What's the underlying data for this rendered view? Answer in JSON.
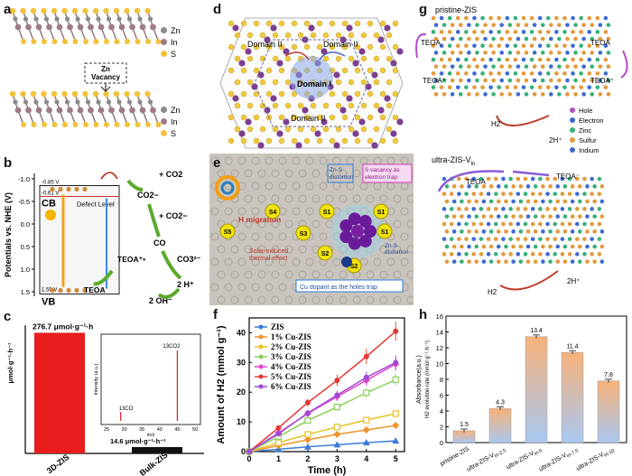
{
  "figure": {
    "panels": {
      "a": {
        "label": "a",
        "legend": [
          "Zn",
          "In",
          "S"
        ],
        "legend_colors": [
          "#8a8a8a",
          "#9e7b86",
          "#f2c23a"
        ],
        "vacancy_label": "Zn\nVacancy"
      },
      "b": {
        "label": "b",
        "ylabel": "Potentials vs. NHE (V)",
        "ticks": [
          "-1.0",
          "-0.5",
          "0.0",
          "0.5",
          "1.0",
          "1.5"
        ],
        "cb_label": "CB",
        "vb_label": "VB",
        "cb_value": "-0.85 V",
        "defect_value": "-0.61 V",
        "vb_value": "1.55 V",
        "defect_text": "Defect Level",
        "co2_top": "+ CO2",
        "co2_minus": "CO2−",
        "co2_minus2": "+ CO2−",
        "co": "CO",
        "co3": "CO3²⁻",
        "two_h": "2 H⁺",
        "two_oh": "2 OH⁻",
        "teoa_plus": "TEOA⁺•",
        "teoa": "TEOA"
      },
      "c": {
        "label": "c",
        "ylabel": "μmol·g⁻¹·h⁻¹",
        "bar1_value": "276.7 μmol·g⁻¹·h",
        "bar2_value": "14.6 μmol·g⁻¹·h⁻¹",
        "categories": [
          "3D-ZIS",
          "Bulk-ZIS"
        ],
        "inset_ylabel": "Intensity (a.u.)",
        "inset_xlabel": "m/z",
        "inset_peak1": "13CO",
        "inset_peak2": "13CO2",
        "inset_ticks": [
          "25",
          "30",
          "35",
          "40",
          "45",
          "50"
        ]
      },
      "d": {
        "label": "d",
        "domains": [
          "Domain II",
          "Domain II",
          "Domain I",
          "Domain II"
        ]
      },
      "e": {
        "label": "e",
        "h_migration": "H migration",
        "solar_effect": "Solar-induced\nthermal effect",
        "zns_distortion": "Zn-S\ndistortion",
        "s_vacancy": "S vacancy as\nelectron trap",
        "zn_distortion": "Zn-S\ndistortion",
        "cu_dopant": "Cu dopant as the holes trap",
        "sites": [
          "S5",
          "S4",
          "S3",
          "S1",
          "S2",
          "S2",
          "S1",
          "S1"
        ]
      },
      "g": {
        "label": "g",
        "title1": "pristine-ZIS",
        "title2": "ultra-ZIS-V",
        "title2_sub": "In",
        "teoa": "TEOA",
        "teoa_plus": "TEOA⁺",
        "teoa_minus": "TEOA⁻",
        "h2": "H2",
        "two_h": "2H⁺",
        "legend": [
          "Hole",
          "Electron",
          "Zinc",
          "Sulfur",
          "Indium"
        ],
        "legend_colors": [
          "#b04cc4",
          "#3a64d8",
          "#38b07a",
          "#e29a3c",
          "#3f6bd1"
        ]
      }
    }
  },
  "chart_data": [
    {
      "type": "line",
      "panel": "f",
      "label": "f",
      "xlabel": "Time (h)",
      "ylabel": "Amount of H2 (mmol g⁻¹)",
      "x": [
        0,
        1,
        2,
        3,
        4,
        5
      ],
      "xlim": [
        0,
        5.3
      ],
      "ylim": [
        0,
        45
      ],
      "yticks": [
        0,
        10,
        20,
        30,
        40
      ],
      "xticks": [
        0,
        1,
        2,
        3,
        4,
        5
      ],
      "series": [
        {
          "name": "ZIS",
          "color": "#3b7bd6",
          "marker": "triangle",
          "values": [
            0,
            0.8,
            1.6,
            2.3,
            3.0,
            3.6
          ]
        },
        {
          "name": "1% Cu-ZIS",
          "color": "#f0932b",
          "marker": "diamond",
          "values": [
            0,
            2.0,
            4.0,
            5.8,
            7.3,
            8.8
          ]
        },
        {
          "name": "2% Cu-ZIS",
          "color": "#e6c229",
          "marker": "square",
          "values": [
            0,
            3.0,
            5.8,
            8.3,
            10.6,
            12.8
          ]
        },
        {
          "name": "3% Cu-ZIS",
          "color": "#8bd05a",
          "marker": "square",
          "values": [
            0,
            5.0,
            10.5,
            15.0,
            19.8,
            24.2
          ]
        },
        {
          "name": "4% Cu-ZIS",
          "color": "#e546c9",
          "marker": "diamond",
          "values": [
            0,
            6.3,
            12.8,
            18.5,
            24.0,
            29.5
          ]
        },
        {
          "name": "5% Cu-ZIS",
          "color": "#e53935",
          "marker": "circle",
          "values": [
            0,
            8.0,
            16.5,
            24.0,
            32.0,
            40.5
          ]
        },
        {
          "name": "6% Cu-ZIS",
          "color": "#a14ad6",
          "marker": "circle",
          "values": [
            0,
            6.0,
            13.0,
            19.0,
            25.0,
            30.0
          ]
        }
      ]
    },
    {
      "type": "bar",
      "panel": "h",
      "label": "h",
      "ylabel": "Absorbance(a.u.)",
      "ylabel2": "H2 evolution rate (mmol g⁻¹ h⁻¹)",
      "categories": [
        "pristine-ZIS",
        "ultra-ZIS-V",
        "ultra-ZIS-V",
        "ultra-ZIS-V",
        "ultra-ZIS-V"
      ],
      "category_suffix": [
        "",
        "In-2.5",
        "In-5",
        "In-7.5",
        "In-10"
      ],
      "values": [
        1.5,
        4.3,
        13.4,
        11.4,
        7.8
      ],
      "value_labels": [
        "1.5",
        "4.3",
        "13.4",
        "11.4",
        "7.8"
      ],
      "ylim": [
        0,
        16
      ],
      "yticks": [
        0,
        2,
        4,
        6,
        8,
        10,
        12,
        14,
        16
      ]
    }
  ]
}
